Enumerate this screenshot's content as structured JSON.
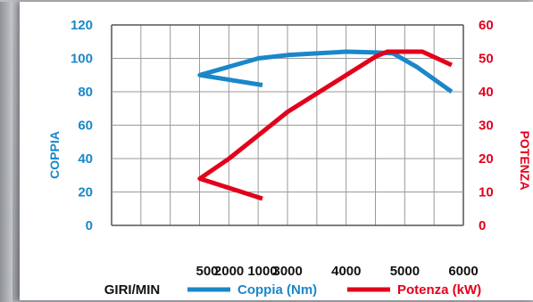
{
  "chart_data": {
    "type": "line",
    "xlabel": "GIRI/MIN",
    "x_ticks": [
      "500",
      "1000",
      "2000",
      "3000",
      "4000",
      "5000",
      "6000"
    ],
    "y_left": {
      "label": "COPPIA",
      "ticks": [
        "0",
        "20",
        "40",
        "60",
        "80",
        "100",
        "120"
      ],
      "range": [
        0,
        120
      ]
    },
    "y_right": {
      "label": "POTENZA",
      "ticks": [
        "0",
        "10",
        "20",
        "30",
        "40",
        "50",
        "60"
      ],
      "range": [
        0,
        60
      ]
    },
    "grid": true,
    "legend_position": "bottom",
    "series": [
      {
        "name": "Coppia (Nm)",
        "axis": "left",
        "color": "#1a87c9",
        "points": [
          [
            1000,
            84
          ],
          [
            1500,
            90
          ],
          [
            2000,
            95
          ],
          [
            2500,
            100
          ],
          [
            3000,
            102
          ],
          [
            3500,
            103
          ],
          [
            4000,
            104
          ],
          [
            4500,
            103.5
          ],
          [
            4800,
            103
          ],
          [
            5200,
            95
          ],
          [
            5800,
            80
          ]
        ]
      },
      {
        "name": "Potenza (kW)",
        "axis": "right",
        "color": "#e3001b",
        "points": [
          [
            1000,
            8
          ],
          [
            1500,
            14
          ],
          [
            2000,
            20
          ],
          [
            2500,
            27
          ],
          [
            3000,
            34
          ],
          [
            3500,
            39.5
          ],
          [
            4000,
            45
          ],
          [
            4500,
            50.5
          ],
          [
            4700,
            52
          ],
          [
            5000,
            52
          ],
          [
            5300,
            52
          ],
          [
            5800,
            48
          ]
        ]
      }
    ]
  }
}
